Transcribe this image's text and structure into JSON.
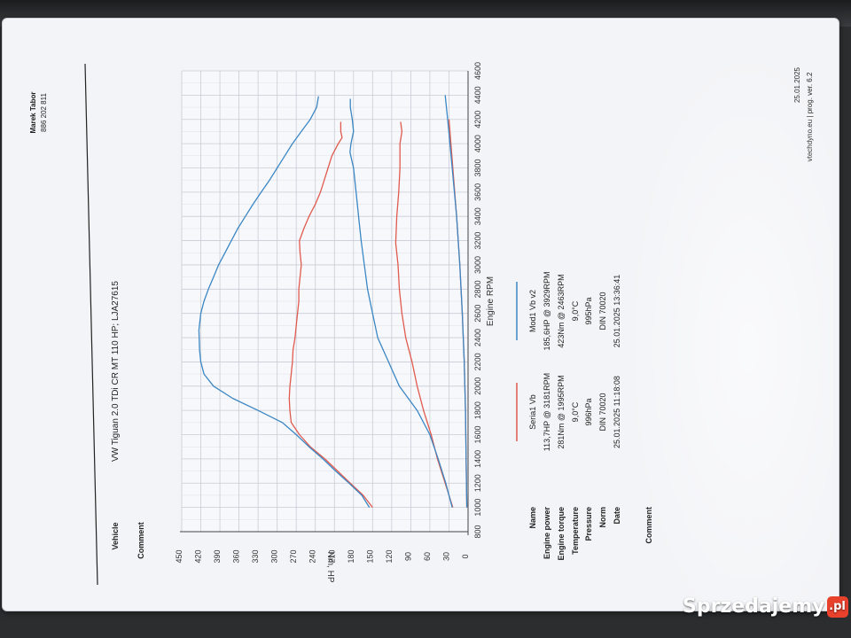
{
  "header": {
    "owner_name": "Marek Tabor",
    "owner_phone": "886 202 811",
    "vehicle_label": "Vehicle",
    "vehicle_value": "VW Tiguan 2.0 TDi CR MT 110 HP; LJA27615",
    "comment_label": "Comment"
  },
  "footer": {
    "date": "25.01.2025",
    "software": "vtechdyno.eu | prog. ver. 6.2"
  },
  "results": {
    "labels": [
      "Name",
      "Engine power",
      "Engine torque",
      "Temperature",
      "Pressure",
      "Norm",
      "Date",
      "Comment"
    ],
    "series1": [
      "Seria1 Vb",
      "113,7HP @ 3181RPM",
      "281Nm @ 1995RPM",
      "9,0°C",
      "996hPa",
      "DIN 70020",
      "25.01.2025 11:18:08"
    ],
    "series2": [
      "Mod1 Vb v2",
      "185,6HP @ 3929RPM",
      "423Nm @ 2463RPM",
      "9,0°C",
      "995hPa",
      "DIN 70020",
      "25.01.2025 13:36:41"
    ]
  },
  "watermark": {
    "text": "Sprzedajemy",
    "badge": ".pl"
  },
  "colors": {
    "series1": "#e05a4e",
    "series2": "#3b87c4",
    "grid": "#c9ccd6",
    "paper": "#f3f4f7"
  },
  "chart_data": {
    "type": "line",
    "title": "",
    "xlabel": "Engine RPM",
    "ylabel": "Nm, HP",
    "xlim": [
      800,
      4600
    ],
    "ylim": [
      0,
      450
    ],
    "xticks": [
      800,
      1000,
      1200,
      1400,
      1600,
      1800,
      2000,
      2200,
      2400,
      2600,
      2800,
      3000,
      3200,
      3400,
      3600,
      3800,
      4000,
      4200,
      4400,
      4600
    ],
    "yticks": [
      0,
      30,
      60,
      90,
      120,
      150,
      180,
      210,
      240,
      270,
      300,
      330,
      360,
      390,
      420,
      450
    ],
    "grid": true,
    "series": [
      {
        "name": "Seria1 Vb",
        "quantity": "torque",
        "color": "#e05a4e",
        "x": [
          1000,
          1100,
          1200,
          1300,
          1400,
          1500,
          1600,
          1700,
          1800,
          1900,
          1995,
          2100,
          2200,
          2300,
          2400,
          2500,
          2600,
          2700,
          2800,
          2900,
          3000,
          3100,
          3200,
          3300,
          3400,
          3500,
          3600,
          3700,
          3800,
          3900,
          4000,
          4050,
          4100,
          4180
        ],
        "y": [
          150,
          165,
          185,
          205,
          225,
          248,
          265,
          278,
          280,
          281,
          280,
          278,
          276,
          275,
          272,
          270,
          268,
          266,
          266,
          264,
          262,
          264,
          265,
          258,
          250,
          240,
          232,
          226,
          220,
          214,
          204,
          198,
          200,
          200
        ]
      },
      {
        "name": "Seria1 Vb",
        "quantity": "power",
        "color": "#e05a4e",
        "x": [
          1000,
          1200,
          1400,
          1600,
          1800,
          2000,
          2200,
          2400,
          2600,
          2800,
          3000,
          3181,
          3400,
          3600,
          3800,
          4000,
          4100,
          4180
        ],
        "y": [
          24,
          36,
          48,
          58,
          70,
          80,
          88,
          98,
          104,
          108,
          110,
          113.7,
          112,
          109,
          107,
          107,
          104,
          106
        ]
      },
      {
        "name": "Mod1 Vb v2",
        "quantity": "torque",
        "color": "#3b87c4",
        "x": [
          1000,
          1100,
          1200,
          1300,
          1400,
          1500,
          1600,
          1700,
          1800,
          1900,
          2000,
          2100,
          2200,
          2300,
          2463,
          2600,
          2700,
          2800,
          2900,
          3000,
          3100,
          3200,
          3300,
          3400,
          3500,
          3600,
          3700,
          3800,
          3900,
          4000,
          4100,
          4200,
          4300,
          4390
        ],
        "y": [
          155,
          167,
          187,
          208,
          228,
          250,
          270,
          292,
          330,
          370,
          400,
          415,
          420,
          422,
          423,
          420,
          415,
          408,
          400,
          392,
          382,
          372,
          362,
          350,
          338,
          325,
          312,
          300,
          288,
          276,
          262,
          248,
          238,
          235
        ]
      },
      {
        "name": "Mod1 Vb v2",
        "quantity": "power",
        "color": "#3b87c4",
        "x": [
          1000,
          1200,
          1400,
          1600,
          1800,
          2000,
          2200,
          2400,
          2600,
          2800,
          3000,
          3200,
          3400,
          3600,
          3800,
          3929,
          4000,
          4100,
          4200,
          4300,
          4370
        ],
        "y": [
          25,
          35,
          47,
          60,
          80,
          108,
          125,
          142,
          150,
          158,
          163,
          168,
          172,
          176,
          180,
          185.6,
          184,
          180,
          182,
          185,
          185
        ]
      },
      {
        "name": "Seria1 Vb",
        "quantity": "loss",
        "color": "#e05a4e",
        "x": [
          1000,
          1400,
          1800,
          2200,
          2600,
          3000,
          3400,
          3800,
          4200
        ],
        "y": [
          2,
          3,
          4,
          6,
          9,
          13,
          18,
          24,
          30
        ]
      },
      {
        "name": "Mod1 Vb v2",
        "quantity": "loss",
        "color": "#3b87c4",
        "x": [
          1000,
          1400,
          1800,
          2200,
          2600,
          3000,
          3400,
          3800,
          4200,
          4400
        ],
        "y": [
          2,
          3,
          4,
          6,
          9,
          13,
          18,
          25,
          32,
          36
        ]
      }
    ]
  }
}
